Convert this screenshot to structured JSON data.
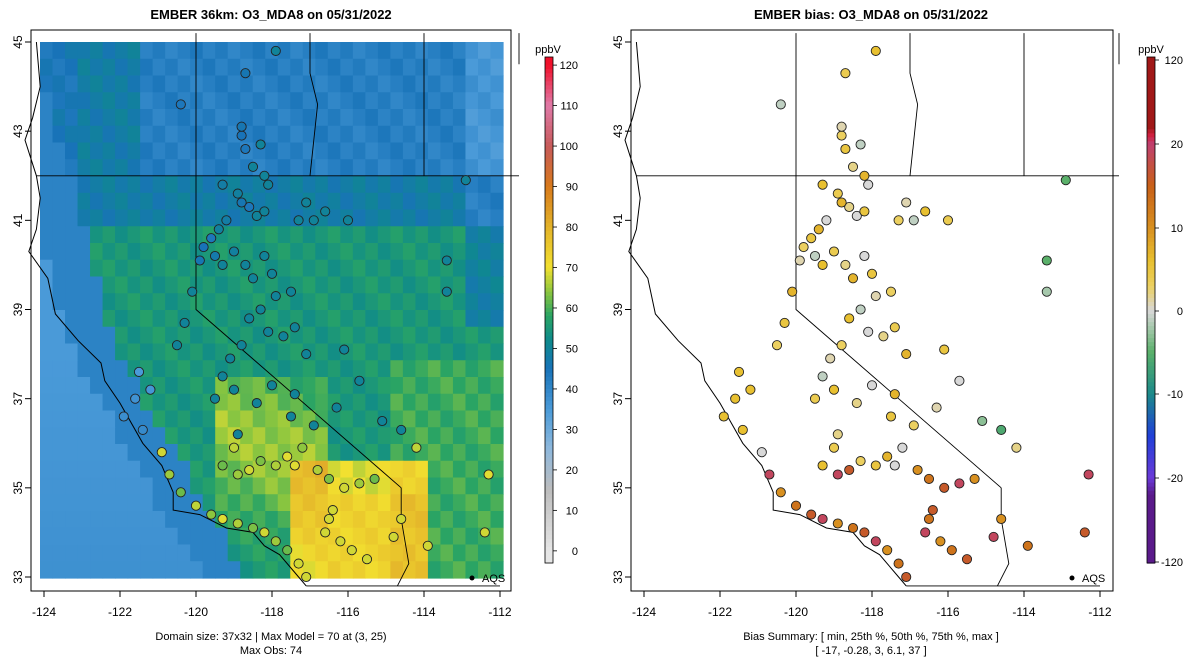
{
  "left_panel": {
    "title": "EMBER 36km: O3_MDA8 on 05/31/2022",
    "caption_line1": "Domain size: 37x32 | Max Model = 70 at (3, 25)",
    "caption_line2": "Max Obs: 74",
    "colorbar_unit": "ppbV",
    "colorbar_ticks": [
      "0",
      "10",
      "20",
      "30",
      "40",
      "50",
      "60",
      "70",
      "80",
      "90",
      "100",
      "110",
      "120"
    ],
    "colorbar_values": [
      0,
      10,
      20,
      30,
      40,
      50,
      60,
      70,
      80,
      90,
      100,
      110,
      120
    ]
  },
  "right_panel": {
    "title": "EMBER bias: O3_MDA8 on 05/31/2022",
    "caption_line1": "Bias Summary: [ min, 25th %, 50th %, 75th %, max ]",
    "caption_line2": "[ -17,   -0.28,   3,   6.1,   37 ]",
    "colorbar_unit": "ppbV",
    "colorbar_ticks": [
      "-120",
      "-20",
      "-10",
      "0",
      "10",
      "20",
      "120"
    ]
  },
  "axes": {
    "x_ticks": [
      "-124",
      "-122",
      "-120",
      "-118",
      "-116",
      "-114",
      "-112"
    ],
    "x_values": [
      -124,
      -122,
      -120,
      -118,
      -116,
      -114,
      -112
    ],
    "y_ticks": [
      "33",
      "35",
      "37",
      "39",
      "41",
      "43",
      "45"
    ],
    "y_values": [
      33,
      35,
      37,
      39,
      41,
      43,
      45
    ],
    "lon_range": [
      -124,
      -112
    ],
    "lat_range": [
      33,
      45
    ]
  },
  "legend_label": "AQS",
  "colors": {
    "ocean_model": "#4a92c9",
    "land_model_base": "#1a76b8",
    "bias_neutral": "#d8d8d8"
  }
}
